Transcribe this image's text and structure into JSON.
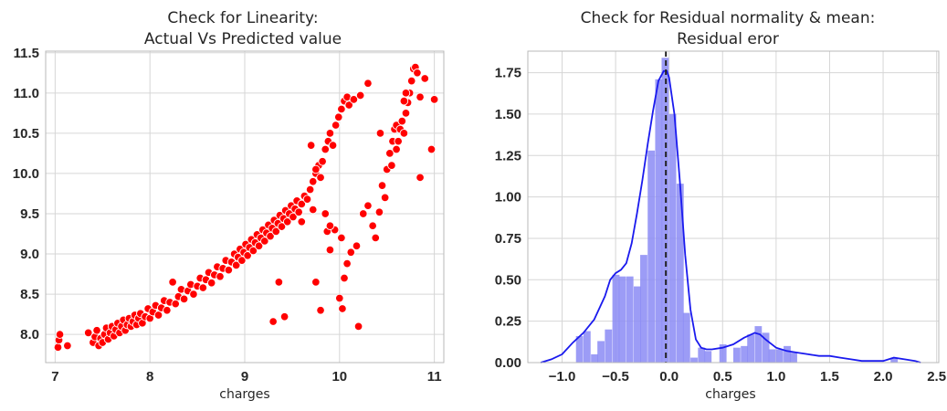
{
  "chart_data": [
    {
      "type": "scatter",
      "title_lines": [
        "Check for Linearity:",
        "Actual Vs Predicted value"
      ],
      "xlabel": "charges",
      "ylabel": "",
      "xlim": [
        6.9,
        11.1
      ],
      "ylim": [
        7.65,
        11.52
      ],
      "xticks": [
        "7",
        "8",
        "9",
        "10",
        "11"
      ],
      "yticks": [
        "8.0",
        "8.5",
        "9.0",
        "9.5",
        "10.0",
        "10.5",
        "11.0",
        "11.5"
      ],
      "grid": true,
      "marker_color": "#ff0000",
      "points": [
        [
          7.03,
          7.84
        ],
        [
          7.04,
          7.93
        ],
        [
          7.05,
          8.0
        ],
        [
          7.13,
          7.86
        ],
        [
          7.35,
          8.02
        ],
        [
          7.4,
          7.9
        ],
        [
          7.42,
          7.97
        ],
        [
          7.44,
          8.05
        ],
        [
          7.46,
          7.86
        ],
        [
          7.48,
          7.95
        ],
        [
          7.5,
          7.9
        ],
        [
          7.52,
          8.0
        ],
        [
          7.54,
          8.08
        ],
        [
          7.56,
          7.94
        ],
        [
          7.58,
          8.02
        ],
        [
          7.6,
          8.1
        ],
        [
          7.62,
          7.98
        ],
        [
          7.64,
          8.06
        ],
        [
          7.66,
          8.14
        ],
        [
          7.68,
          8.02
        ],
        [
          7.7,
          8.1
        ],
        [
          7.72,
          8.18
        ],
        [
          7.74,
          8.05
        ],
        [
          7.76,
          8.12
        ],
        [
          7.78,
          8.2
        ],
        [
          7.8,
          8.1
        ],
        [
          7.82,
          8.16
        ],
        [
          7.84,
          8.24
        ],
        [
          7.86,
          8.12
        ],
        [
          7.88,
          8.2
        ],
        [
          7.9,
          8.26
        ],
        [
          7.92,
          8.14
        ],
        [
          7.95,
          8.22
        ],
        [
          7.98,
          8.32
        ],
        [
          8.0,
          8.2
        ],
        [
          8.03,
          8.28
        ],
        [
          8.06,
          8.36
        ],
        [
          8.09,
          8.24
        ],
        [
          8.12,
          8.33
        ],
        [
          8.15,
          8.42
        ],
        [
          8.18,
          8.3
        ],
        [
          8.21,
          8.4
        ],
        [
          8.24,
          8.65
        ],
        [
          8.27,
          8.38
        ],
        [
          8.3,
          8.47
        ],
        [
          8.33,
          8.56
        ],
        [
          8.36,
          8.44
        ],
        [
          8.4,
          8.54
        ],
        [
          8.43,
          8.62
        ],
        [
          8.46,
          8.5
        ],
        [
          8.5,
          8.6
        ],
        [
          8.53,
          8.7
        ],
        [
          8.56,
          8.58
        ],
        [
          8.59,
          8.68
        ],
        [
          8.62,
          8.77
        ],
        [
          8.65,
          8.64
        ],
        [
          8.68,
          8.74
        ],
        [
          8.71,
          8.84
        ],
        [
          8.74,
          8.72
        ],
        [
          8.77,
          8.82
        ],
        [
          8.8,
          8.92
        ],
        [
          8.83,
          8.8
        ],
        [
          8.86,
          8.9
        ],
        [
          8.89,
          9.0
        ],
        [
          8.91,
          8.86
        ],
        [
          8.93,
          8.96
        ],
        [
          8.95,
          9.06
        ],
        [
          8.97,
          8.92
        ],
        [
          8.99,
          9.02
        ],
        [
          9.01,
          9.12
        ],
        [
          9.03,
          8.98
        ],
        [
          9.05,
          9.08
        ],
        [
          9.07,
          9.18
        ],
        [
          9.09,
          9.04
        ],
        [
          9.11,
          9.14
        ],
        [
          9.13,
          9.24
        ],
        [
          9.15,
          9.1
        ],
        [
          9.17,
          9.2
        ],
        [
          9.19,
          9.3
        ],
        [
          9.21,
          9.16
        ],
        [
          9.23,
          9.26
        ],
        [
          9.25,
          9.36
        ],
        [
          9.27,
          9.22
        ],
        [
          9.29,
          9.32
        ],
        [
          9.31,
          9.42
        ],
        [
          9.33,
          9.28
        ],
        [
          9.35,
          9.38
        ],
        [
          9.37,
          9.48
        ],
        [
          9.39,
          9.34
        ],
        [
          9.41,
          9.44
        ],
        [
          9.43,
          9.54
        ],
        [
          9.45,
          9.4
        ],
        [
          9.47,
          9.5
        ],
        [
          9.49,
          9.6
        ],
        [
          9.51,
          9.46
        ],
        [
          9.53,
          9.56
        ],
        [
          9.55,
          9.66
        ],
        [
          9.57,
          9.52
        ],
        [
          9.6,
          9.62
        ],
        [
          9.63,
          9.72
        ],
        [
          9.66,
          9.68
        ],
        [
          9.69,
          9.8
        ],
        [
          9.72,
          9.9
        ],
        [
          9.75,
          10.0
        ],
        [
          9.78,
          10.1
        ],
        [
          9.8,
          9.95
        ],
        [
          9.82,
          10.15
        ],
        [
          9.85,
          10.3
        ],
        [
          9.88,
          10.4
        ],
        [
          9.9,
          10.5
        ],
        [
          9.93,
          10.35
        ],
        [
          9.96,
          10.6
        ],
        [
          9.99,
          10.7
        ],
        [
          10.02,
          10.8
        ],
        [
          10.05,
          10.9
        ],
        [
          10.08,
          10.95
        ],
        [
          10.1,
          10.85
        ],
        [
          10.15,
          10.92
        ],
        [
          10.22,
          10.97
        ],
        [
          10.3,
          11.12
        ],
        [
          9.7,
          10.35
        ],
        [
          9.72,
          9.55
        ],
        [
          9.75,
          10.05
        ],
        [
          9.85,
          9.5
        ],
        [
          9.87,
          9.28
        ],
        [
          9.9,
          9.05
        ],
        [
          9.95,
          9.3
        ],
        [
          10.02,
          9.2
        ],
        [
          10.05,
          8.7
        ],
        [
          10.08,
          8.88
        ],
        [
          10.12,
          9.02
        ],
        [
          10.18,
          9.1
        ],
        [
          10.25,
          9.5
        ],
        [
          10.3,
          9.6
        ],
        [
          10.35,
          9.35
        ],
        [
          10.38,
          9.2
        ],
        [
          10.42,
          9.52
        ],
        [
          10.45,
          9.85
        ],
        [
          10.48,
          9.7
        ],
        [
          10.5,
          10.05
        ],
        [
          10.53,
          10.25
        ],
        [
          10.56,
          10.4
        ],
        [
          10.58,
          10.55
        ],
        [
          10.6,
          10.6
        ],
        [
          10.62,
          10.4
        ],
        [
          10.64,
          10.55
        ],
        [
          10.66,
          10.65
        ],
        [
          10.68,
          10.5
        ],
        [
          10.7,
          10.75
        ],
        [
          10.72,
          10.88
        ],
        [
          10.74,
          11.0
        ],
        [
          10.76,
          11.15
        ],
        [
          10.78,
          11.3
        ],
        [
          10.8,
          11.32
        ],
        [
          10.82,
          11.25
        ],
        [
          10.85,
          10.95
        ],
        [
          10.9,
          11.18
        ],
        [
          11.0,
          10.92
        ],
        [
          10.97,
          10.3
        ],
        [
          10.85,
          9.95
        ],
        [
          10.7,
          11.0
        ],
        [
          10.68,
          10.9
        ],
        [
          10.6,
          10.3
        ],
        [
          10.55,
          10.1
        ],
        [
          10.43,
          10.5
        ],
        [
          9.75,
          8.65
        ],
        [
          9.8,
          8.3
        ],
        [
          10.0,
          8.45
        ],
        [
          10.03,
          8.32
        ],
        [
          10.2,
          8.1
        ],
        [
          9.3,
          8.16
        ],
        [
          9.42,
          8.22
        ],
        [
          9.36,
          8.65
        ],
        [
          9.9,
          9.35
        ],
        [
          9.6,
          9.4
        ]
      ]
    },
    {
      "type": "histogram+kde",
      "title_lines": [
        "Check for Residual normality & mean:",
        "Residual eror"
      ],
      "xlabel": "charges",
      "ylabel": "",
      "xlim": [
        -1.32,
        2.52
      ],
      "ylim": [
        0,
        1.88
      ],
      "xticks": [
        "−1.0",
        "−0.5",
        "0.0",
        "0.5",
        "1.0",
        "1.5",
        "2.0",
        "2.5"
      ],
      "yticks": [
        "0.00",
        "0.25",
        "0.50",
        "0.75",
        "1.00",
        "1.25",
        "1.50",
        "1.75"
      ],
      "grid": true,
      "bar_color": "#8b8bf5",
      "kde_color": "#1a1aee",
      "mean_line_color": "#222222",
      "mean": -0.03,
      "bin_width": 0.0667,
      "bins": [
        {
          "left": -0.87,
          "height": 0.16
        },
        {
          "left": -0.8,
          "height": 0.19
        },
        {
          "left": -0.73,
          "height": 0.05
        },
        {
          "left": -0.67,
          "height": 0.13
        },
        {
          "left": -0.6,
          "height": 0.2
        },
        {
          "left": -0.53,
          "height": 0.53
        },
        {
          "left": -0.47,
          "height": 0.52
        },
        {
          "left": -0.4,
          "height": 0.52
        },
        {
          "left": -0.33,
          "height": 0.46
        },
        {
          "left": -0.27,
          "height": 0.65
        },
        {
          "left": -0.2,
          "height": 1.28
        },
        {
          "left": -0.13,
          "height": 1.71
        },
        {
          "left": -0.07,
          "height": 1.84
        },
        {
          "left": 0.0,
          "height": 1.5
        },
        {
          "left": 0.07,
          "height": 1.08
        },
        {
          "left": 0.13,
          "height": 0.3
        },
        {
          "left": 0.2,
          "height": 0.03
        },
        {
          "left": 0.27,
          "height": 0.09
        },
        {
          "left": 0.33,
          "height": 0.07
        },
        {
          "left": 0.47,
          "height": 0.11
        },
        {
          "left": 0.6,
          "height": 0.09
        },
        {
          "left": 0.67,
          "height": 0.1
        },
        {
          "left": 0.73,
          "height": 0.17
        },
        {
          "left": 0.8,
          "height": 0.22
        },
        {
          "left": 0.87,
          "height": 0.18
        },
        {
          "left": 0.93,
          "height": 0.08
        },
        {
          "left": 1.0,
          "height": 0.08
        },
        {
          "left": 1.07,
          "height": 0.1
        },
        {
          "left": 1.13,
          "height": 0.06
        },
        {
          "left": 2.07,
          "height": 0.03
        }
      ],
      "kde": {
        "x": [
          -1.2,
          -1.1,
          -1.0,
          -0.9,
          -0.8,
          -0.7,
          -0.6,
          -0.55,
          -0.5,
          -0.45,
          -0.4,
          -0.35,
          -0.3,
          -0.25,
          -0.2,
          -0.15,
          -0.1,
          -0.05,
          -0.02,
          0.0,
          0.05,
          0.1,
          0.15,
          0.2,
          0.25,
          0.3,
          0.35,
          0.4,
          0.5,
          0.6,
          0.7,
          0.8,
          0.85,
          0.9,
          1.0,
          1.1,
          1.2,
          1.3,
          1.4,
          1.5,
          1.6,
          1.7,
          1.8,
          1.9,
          2.0,
          2.1,
          2.2,
          2.3,
          2.35
        ],
        "y": [
          0.0,
          0.02,
          0.05,
          0.12,
          0.18,
          0.26,
          0.4,
          0.5,
          0.54,
          0.56,
          0.6,
          0.72,
          0.9,
          1.1,
          1.32,
          1.52,
          1.7,
          1.76,
          1.76,
          1.72,
          1.5,
          1.1,
          0.65,
          0.32,
          0.14,
          0.09,
          0.08,
          0.08,
          0.09,
          0.11,
          0.15,
          0.18,
          0.17,
          0.14,
          0.09,
          0.07,
          0.06,
          0.05,
          0.04,
          0.04,
          0.03,
          0.02,
          0.01,
          0.01,
          0.01,
          0.03,
          0.02,
          0.01,
          0.0
        ]
      }
    }
  ]
}
